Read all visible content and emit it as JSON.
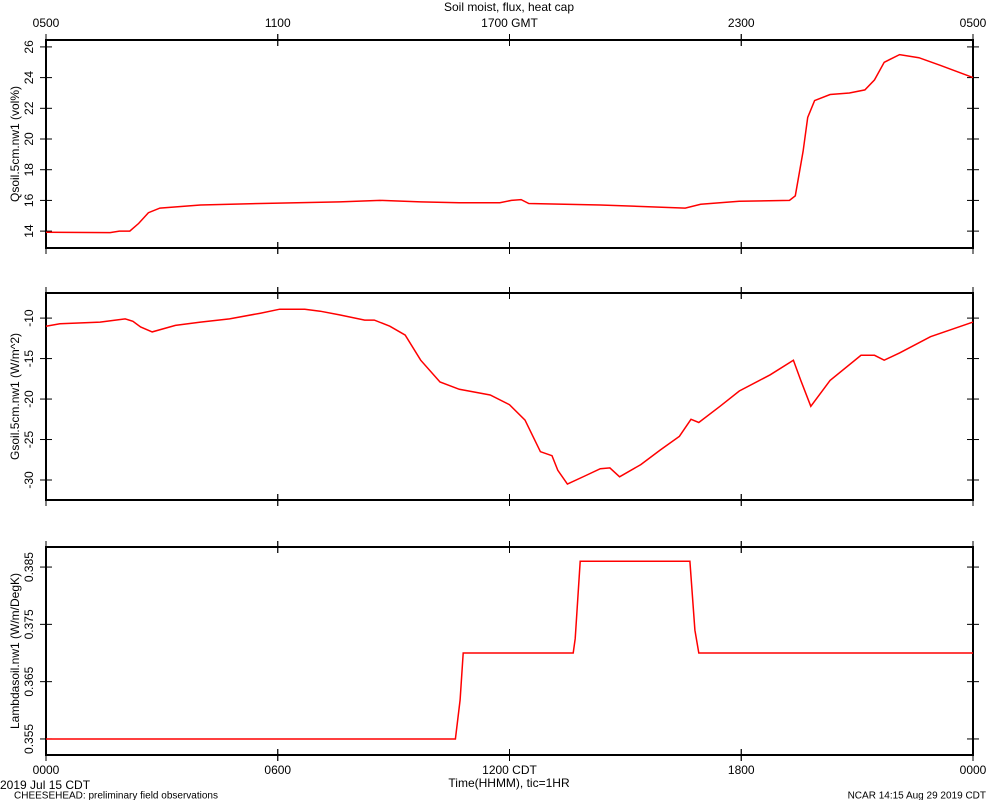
{
  "title": "Soil moist, flux, heat cap",
  "x_label": "Time(HHMM), tic=1HR",
  "date_label": "2019 Jul 15 CDT",
  "project_note": "CHEESEHEAD: preliminary field observations",
  "credit": "NCAR 14:15 Aug 29 2019 CDT",
  "chart_data": [
    {
      "type": "line",
      "ylabel": "Qsoil.5cm.nw1 (vol%)",
      "color": "#ff0000",
      "xlim": [
        0,
        24
      ],
      "ylim": [
        12.9,
        26.45
      ],
      "yticks": [
        14,
        16,
        18,
        20,
        22,
        24,
        26
      ],
      "x2ticks": [
        {
          "value": 0,
          "label": "0500"
        },
        {
          "value": 6,
          "label": "1100"
        },
        {
          "value": 12,
          "label": "1700 GMT"
        },
        {
          "value": 18,
          "label": "2300"
        },
        {
          "value": 24,
          "label": "0500"
        }
      ],
      "x": [
        0,
        1.66,
        1.9,
        2.17,
        2.4,
        2.65,
        2.95,
        4.0,
        5.55,
        7.6,
        8.65,
        9.7,
        10.7,
        11.75,
        12.05,
        12.3,
        12.5,
        14.35,
        16.55,
        16.95,
        17.95,
        19.25,
        19.4,
        19.6,
        19.72,
        19.9,
        20.3,
        20.8,
        21.2,
        21.45,
        21.7,
        22.1,
        22.6,
        23.15,
        24
      ],
      "values": [
        13.93,
        13.9,
        14.0,
        14.0,
        14.5,
        15.2,
        15.5,
        15.7,
        15.8,
        15.9,
        16.0,
        15.9,
        15.85,
        15.85,
        16.0,
        16.05,
        15.8,
        15.7,
        15.5,
        15.75,
        15.95,
        16.0,
        16.3,
        19.2,
        21.4,
        22.5,
        22.9,
        23.0,
        23.2,
        23.85,
        25.0,
        25.5,
        25.3,
        24.8,
        24.0
      ]
    },
    {
      "type": "line",
      "ylabel": "Gsoil.5cm.nw1 (W/m^2)",
      "color": "#ff0000",
      "xlim": [
        0,
        24
      ],
      "ylim": [
        -32.47,
        -6.9
      ],
      "yticks": [
        -10,
        -15,
        -20,
        -25,
        -30
      ],
      "x": [
        0,
        0.36,
        1.4,
        1.8,
        2.05,
        2.25,
        2.45,
        2.75,
        3.35,
        4.0,
        4.75,
        5.55,
        6.05,
        6.7,
        7.1,
        7.6,
        8.25,
        8.5,
        8.9,
        9.3,
        9.7,
        10.2,
        10.7,
        11.5,
        12.0,
        12.4,
        12.8,
        13.1,
        13.25,
        13.5,
        13.95,
        14.35,
        14.6,
        14.85,
        15.4,
        15.9,
        16.4,
        16.7,
        16.9,
        17.45,
        17.95,
        18.75,
        19.35,
        19.55,
        19.8,
        20.3,
        21.1,
        21.45,
        21.7,
        22.1,
        22.9,
        24
      ],
      "values": [
        -11.0,
        -10.7,
        -10.5,
        -10.25,
        -10.1,
        -10.4,
        -11.1,
        -11.7,
        -10.9,
        -10.5,
        -10.1,
        -9.4,
        -8.9,
        -8.9,
        -9.15,
        -9.6,
        -10.25,
        -10.25,
        -11.0,
        -12.1,
        -15.2,
        -17.9,
        -18.8,
        -19.5,
        -20.7,
        -22.6,
        -26.5,
        -27.0,
        -28.8,
        -30.5,
        -29.5,
        -28.6,
        -28.5,
        -29.6,
        -28.1,
        -26.3,
        -24.6,
        -22.5,
        -22.9,
        -20.9,
        -19.0,
        -17.0,
        -15.2,
        -17.8,
        -20.9,
        -17.7,
        -14.6,
        -14.6,
        -15.2,
        -14.3,
        -12.3,
        -10.5
      ]
    },
    {
      "type": "line",
      "ylabel": "Lambdasoil.nw1 (W/m/DegK)",
      "color": "#ff0000",
      "xlim": [
        0,
        24
      ],
      "ylim": [
        0.3522,
        0.3885
      ],
      "yticks": [
        0.355,
        0.365,
        0.375,
        0.385
      ],
      "xticks": [
        {
          "value": 0,
          "label": "0000"
        },
        {
          "value": 6,
          "label": "0600"
        },
        {
          "value": 12,
          "label": "1200 CDT"
        },
        {
          "value": 18,
          "label": "1800"
        },
        {
          "value": 24,
          "label": "0000"
        }
      ],
      "x": [
        0,
        10.6,
        10.72,
        10.8,
        13.65,
        13.7,
        13.83,
        16.67,
        16.8,
        16.9,
        24
      ],
      "values": [
        0.355,
        0.355,
        0.3618,
        0.37,
        0.37,
        0.3725,
        0.386,
        0.386,
        0.374,
        0.37,
        0.37
      ]
    }
  ]
}
